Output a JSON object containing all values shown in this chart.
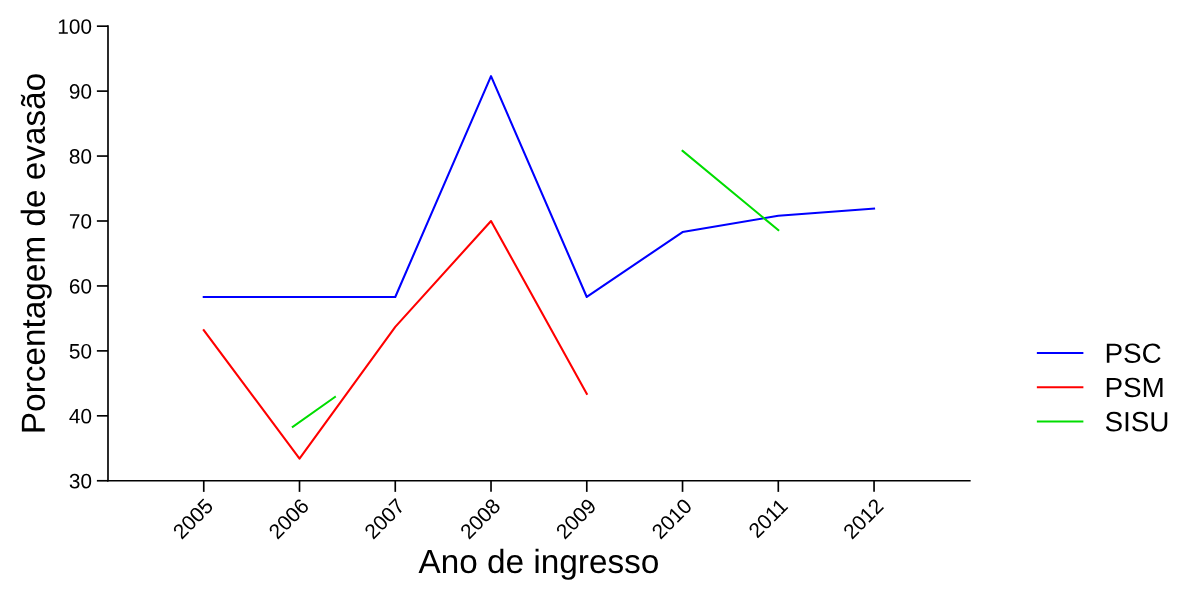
{
  "chart_data": {
    "type": "line",
    "xlabel": "Ano de ingresso",
    "ylabel": "Porcentagem de evasão",
    "x": [
      2005,
      2006,
      2007,
      2008,
      2009,
      2010,
      2011,
      2012
    ],
    "xlim": [
      2004,
      2013
    ],
    "xticks": [
      2005,
      2006,
      2007,
      2008,
      2009,
      2010,
      2011,
      2012
    ],
    "ylim": [
      30,
      100
    ],
    "yticks": [
      30,
      40,
      50,
      60,
      70,
      80,
      90,
      100
    ],
    "grid": false,
    "legend": "right",
    "marker": "none",
    "line_style": "solid",
    "series": [
      {
        "name": "PSC",
        "color": "#0000ff",
        "values": [
          58.3,
          58.3,
          58.3,
          92.3,
          58.3,
          68.3,
          70.8,
          71.9
        ]
      },
      {
        "name": "PSM",
        "color": "#ff0000",
        "values": [
          53.2,
          33.4,
          53.7,
          70.0,
          43.4,
          null,
          null,
          null
        ]
      },
      {
        "name": "SISU",
        "color": "#00dd00",
        "x": [
          2005.93,
          2006.37,
          2008,
          2010,
          2011
        ],
        "values": [
          38.3,
          42.9,
          null,
          80.8,
          68.6
        ]
      }
    ]
  }
}
